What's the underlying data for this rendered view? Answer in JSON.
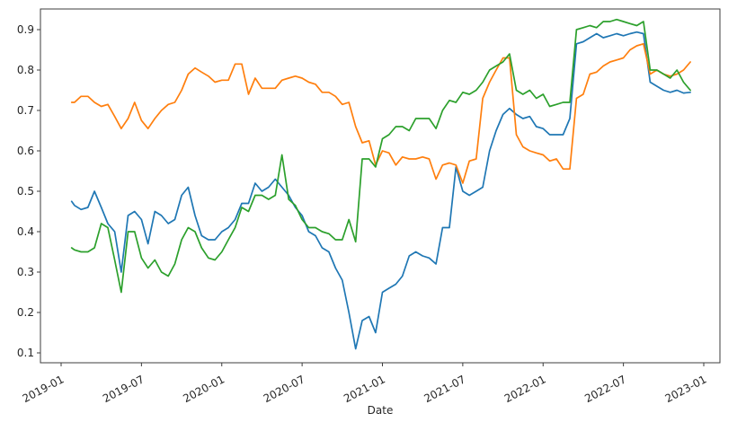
{
  "figure": {
    "background": "#ffffff",
    "spine_color": "#3c3c3c",
    "tick_color": "#3c3c3c"
  },
  "chart_data": {
    "type": "line",
    "title": "",
    "xlabel": "Date",
    "ylabel": "",
    "grid": false,
    "legend": "none",
    "x_tick_labels": [
      "2019-01",
      "2019-07",
      "2020-01",
      "2020-07",
      "2021-01",
      "2021-07",
      "2022-01",
      "2022-07",
      "2023-01"
    ],
    "y_ticks": [
      0.1,
      0.2,
      0.3,
      0.4,
      0.5,
      0.6,
      0.7,
      0.8,
      0.9
    ],
    "y_tick_labels": [
      "0.1",
      "0.2",
      "0.3",
      "0.4",
      "0.5",
      "0.6",
      "0.7",
      "0.8",
      "0.9"
    ],
    "xlim_months_from_2019_01": [
      -1.54,
      49.2
    ],
    "ylim": [
      0.075,
      0.951
    ],
    "x": [
      "2019-01-25",
      "2019-02-01",
      "2019-02-16",
      "2019-03-01",
      "2019-03-16",
      "2019-04-01",
      "2019-04-16",
      "2019-05-01",
      "2019-05-16",
      "2019-06-01",
      "2019-06-16",
      "2019-07-01",
      "2019-07-16",
      "2019-08-01",
      "2019-08-16",
      "2019-09-01",
      "2019-09-16",
      "2019-10-01",
      "2019-10-16",
      "2019-11-01",
      "2019-11-16",
      "2019-12-01",
      "2019-12-16",
      "2020-01-01",
      "2020-01-16",
      "2020-02-01",
      "2020-02-16",
      "2020-03-01",
      "2020-03-16",
      "2020-04-01",
      "2020-04-16",
      "2020-05-01",
      "2020-05-16",
      "2020-06-01",
      "2020-06-16",
      "2020-07-01",
      "2020-07-16",
      "2020-08-01",
      "2020-08-16",
      "2020-09-01",
      "2020-09-16",
      "2020-10-01",
      "2020-10-16",
      "2020-11-01",
      "2020-11-16",
      "2020-12-01",
      "2020-12-16",
      "2021-01-01",
      "2021-01-16",
      "2021-02-01",
      "2021-02-16",
      "2021-03-01",
      "2021-03-16",
      "2021-04-01",
      "2021-04-16",
      "2021-05-01",
      "2021-05-16",
      "2021-06-01",
      "2021-06-16",
      "2021-07-01",
      "2021-07-16",
      "2021-08-01",
      "2021-08-16",
      "2021-09-01",
      "2021-09-16",
      "2021-10-01",
      "2021-10-16",
      "2021-11-01",
      "2021-11-16",
      "2021-12-01",
      "2021-12-16",
      "2022-01-01",
      "2022-01-16",
      "2022-02-01",
      "2022-02-16",
      "2022-03-01",
      "2022-03-16",
      "2022-04-01",
      "2022-04-16",
      "2022-05-01",
      "2022-05-16",
      "2022-06-01",
      "2022-06-16",
      "2022-07-01",
      "2022-07-16",
      "2022-08-01",
      "2022-08-16",
      "2022-09-01",
      "2022-09-16",
      "2022-10-01",
      "2022-10-16",
      "2022-11-01",
      "2022-11-16",
      "2022-12-01"
    ],
    "series": [
      {
        "name": "series-blue",
        "color": "#1f77b4",
        "values": [
          0.475,
          0.465,
          0.455,
          0.46,
          0.5,
          0.46,
          0.42,
          0.4,
          0.3,
          0.44,
          0.45,
          0.43,
          0.37,
          0.45,
          0.44,
          0.42,
          0.43,
          0.49,
          0.51,
          0.44,
          0.39,
          0.38,
          0.38,
          0.4,
          0.41,
          0.43,
          0.47,
          0.47,
          0.52,
          0.5,
          0.51,
          0.53,
          0.51,
          0.49,
          0.46,
          0.44,
          0.4,
          0.39,
          0.36,
          0.35,
          0.31,
          0.28,
          0.2,
          0.11,
          0.18,
          0.19,
          0.15,
          0.25,
          0.26,
          0.27,
          0.29,
          0.34,
          0.35,
          0.34,
          0.335,
          0.32,
          0.41,
          0.41,
          0.56,
          0.5,
          0.49,
          0.5,
          0.51,
          0.6,
          0.65,
          0.69,
          0.705,
          0.69,
          0.68,
          0.685,
          0.66,
          0.655,
          0.64,
          0.64,
          0.64,
          0.68,
          0.865,
          0.87,
          0.88,
          0.89,
          0.88,
          0.885,
          0.89,
          0.885,
          0.89,
          0.894,
          0.89,
          0.77,
          0.76,
          0.75,
          0.745,
          0.75,
          0.743,
          0.745
        ]
      },
      {
        "name": "series-orange",
        "color": "#ff7f0e",
        "values": [
          0.72,
          0.72,
          0.735,
          0.735,
          0.72,
          0.71,
          0.715,
          0.685,
          0.655,
          0.68,
          0.72,
          0.675,
          0.655,
          0.68,
          0.7,
          0.715,
          0.72,
          0.75,
          0.79,
          0.805,
          0.795,
          0.785,
          0.77,
          0.775,
          0.775,
          0.815,
          0.815,
          0.74,
          0.78,
          0.755,
          0.755,
          0.755,
          0.775,
          0.78,
          0.785,
          0.78,
          0.77,
          0.765,
          0.745,
          0.745,
          0.735,
          0.715,
          0.72,
          0.66,
          0.62,
          0.625,
          0.565,
          0.6,
          0.595,
          0.565,
          0.585,
          0.58,
          0.58,
          0.585,
          0.58,
          0.53,
          0.565,
          0.57,
          0.565,
          0.52,
          0.575,
          0.58,
          0.73,
          0.77,
          0.8,
          0.83,
          0.83,
          0.64,
          0.61,
          0.6,
          0.595,
          0.59,
          0.575,
          0.58,
          0.555,
          0.555,
          0.73,
          0.74,
          0.79,
          0.795,
          0.81,
          0.82,
          0.825,
          0.83,
          0.85,
          0.86,
          0.865,
          0.79,
          0.8,
          0.79,
          0.785,
          0.79,
          0.8,
          0.82
        ]
      },
      {
        "name": "series-green",
        "color": "#2ca02c",
        "values": [
          0.36,
          0.355,
          0.35,
          0.35,
          0.36,
          0.42,
          0.41,
          0.33,
          0.25,
          0.4,
          0.4,
          0.335,
          0.31,
          0.33,
          0.3,
          0.29,
          0.32,
          0.38,
          0.41,
          0.4,
          0.36,
          0.335,
          0.33,
          0.35,
          0.38,
          0.41,
          0.46,
          0.45,
          0.49,
          0.49,
          0.48,
          0.49,
          0.59,
          0.48,
          0.465,
          0.43,
          0.41,
          0.41,
          0.4,
          0.395,
          0.38,
          0.38,
          0.43,
          0.375,
          0.58,
          0.58,
          0.56,
          0.63,
          0.64,
          0.66,
          0.66,
          0.65,
          0.68,
          0.68,
          0.68,
          0.655,
          0.7,
          0.725,
          0.72,
          0.745,
          0.74,
          0.75,
          0.77,
          0.8,
          0.81,
          0.82,
          0.84,
          0.75,
          0.74,
          0.75,
          0.73,
          0.74,
          0.71,
          0.715,
          0.72,
          0.72,
          0.9,
          0.905,
          0.91,
          0.905,
          0.92,
          0.92,
          0.925,
          0.92,
          0.915,
          0.91,
          0.92,
          0.8,
          0.8,
          0.79,
          0.78,
          0.8,
          0.77,
          0.75
        ]
      }
    ]
  }
}
